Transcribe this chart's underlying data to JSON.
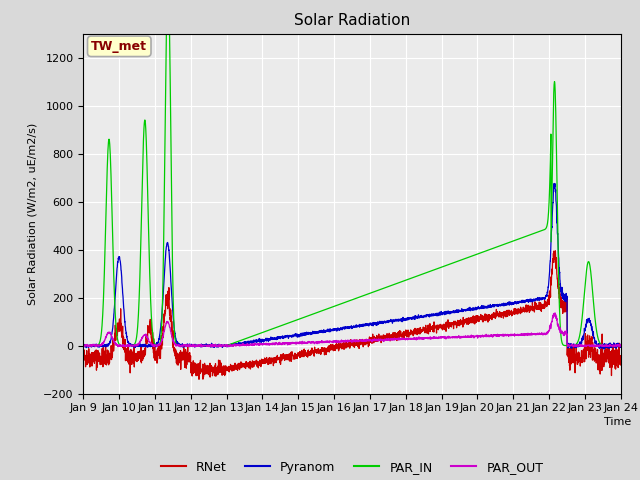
{
  "title": "Solar Radiation",
  "ylabel": "Solar Radiation (W/m2, uE/m2/s)",
  "xlabel": "Time",
  "annotation": "TW_met",
  "ylim": [
    -200,
    1300
  ],
  "yticks": [
    -200,
    0,
    200,
    400,
    600,
    800,
    1000,
    1200
  ],
  "xtick_labels": [
    "Jan 9",
    "Jan 10",
    "Jan 11",
    "Jan 12",
    "Jan 13",
    "Jan 14",
    "Jan 15",
    "Jan 16",
    "Jan 17",
    "Jan 18",
    "Jan 19",
    "Jan 20",
    "Jan 21",
    "Jan 22",
    "Jan 23",
    "Jan 24"
  ],
  "colors": {
    "RNet": "#cc0000",
    "Pyranom": "#0000cc",
    "PAR_IN": "#00cc00",
    "PAR_OUT": "#cc00cc"
  },
  "bg_color": "#d9d9d9",
  "plot_bg": "#ebebeb",
  "annotation_bg": "#ffffcc",
  "annotation_text_color": "#880000",
  "annotation_border": "#aaaaaa"
}
